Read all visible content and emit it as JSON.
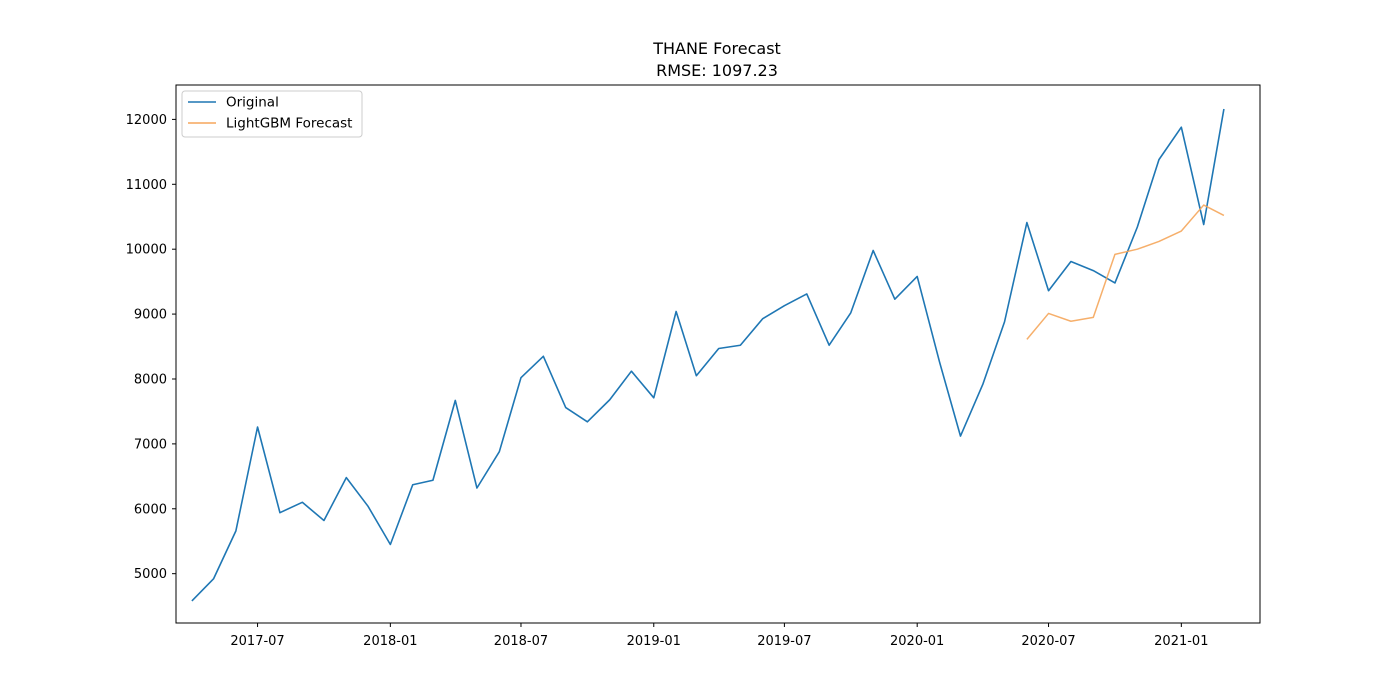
{
  "chart_data": {
    "type": "line",
    "title": "THANE Forecast",
    "subtitle": "RMSE: 1097.23",
    "xlabel": "",
    "ylabel": "",
    "x_range": [
      "2017-03-10",
      "2021-04-20"
    ],
    "ylim": [
      4240,
      12530
    ],
    "grid": false,
    "legend_position": "top-left",
    "x_ticks": [
      "2017-07",
      "2018-01",
      "2018-07",
      "2019-01",
      "2019-07",
      "2020-01",
      "2020-07",
      "2021-01"
    ],
    "y_ticks": [
      5000,
      6000,
      7000,
      8000,
      9000,
      10000,
      11000,
      12000
    ],
    "series": [
      {
        "name": "Original",
        "color": "#1f77b4",
        "points": [
          [
            "2017-04",
            4580
          ],
          [
            "2017-05",
            4920
          ],
          [
            "2017-06",
            5660
          ],
          [
            "2017-07",
            7260
          ],
          [
            "2017-08",
            5940
          ],
          [
            "2017-09",
            6100
          ],
          [
            "2017-10",
            5820
          ],
          [
            "2017-11",
            6480
          ],
          [
            "2017-12",
            6040
          ],
          [
            "2018-01",
            5450
          ],
          [
            "2018-02",
            6370
          ],
          [
            "2018-03",
            6440
          ],
          [
            "2018-04",
            7670
          ],
          [
            "2018-05",
            6320
          ],
          [
            "2018-06",
            6880
          ],
          [
            "2018-07",
            8020
          ],
          [
            "2018-08",
            8350
          ],
          [
            "2018-09",
            7560
          ],
          [
            "2018-10",
            7340
          ],
          [
            "2018-11",
            7680
          ],
          [
            "2018-12",
            8120
          ],
          [
            "2019-01",
            7710
          ],
          [
            "2019-02",
            9040
          ],
          [
            "2019-03",
            8050
          ],
          [
            "2019-04",
            8470
          ],
          [
            "2019-05",
            8520
          ],
          [
            "2019-06",
            8930
          ],
          [
            "2019-07",
            9130
          ],
          [
            "2019-08",
            9310
          ],
          [
            "2019-09",
            8520
          ],
          [
            "2019-10",
            9020
          ],
          [
            "2019-11",
            9980
          ],
          [
            "2019-12",
            9230
          ],
          [
            "2020-01",
            9580
          ],
          [
            "2020-02",
            8260
          ],
          [
            "2020-03",
            7120
          ],
          [
            "2020-04",
            7920
          ],
          [
            "2020-05",
            8880
          ],
          [
            "2020-06",
            10410
          ],
          [
            "2020-07",
            9360
          ],
          [
            "2020-08",
            9810
          ],
          [
            "2020-09",
            9670
          ],
          [
            "2020-10",
            9480
          ],
          [
            "2020-11",
            10340
          ],
          [
            "2020-12",
            11380
          ],
          [
            "2021-01",
            11880
          ],
          [
            "2021-02",
            10380
          ],
          [
            "2021-03",
            12160
          ]
        ]
      },
      {
        "name": "LightGBM Forecast",
        "color": "#f5a65b",
        "points": [
          [
            "2020-06",
            8610
          ],
          [
            "2020-07",
            9010
          ],
          [
            "2020-08",
            8890
          ],
          [
            "2020-09",
            8950
          ],
          [
            "2020-10",
            9920
          ],
          [
            "2020-11",
            10000
          ],
          [
            "2020-12",
            10120
          ],
          [
            "2021-01",
            10280
          ],
          [
            "2021-02",
            10680
          ],
          [
            "2021-03",
            10520
          ]
        ]
      }
    ]
  }
}
